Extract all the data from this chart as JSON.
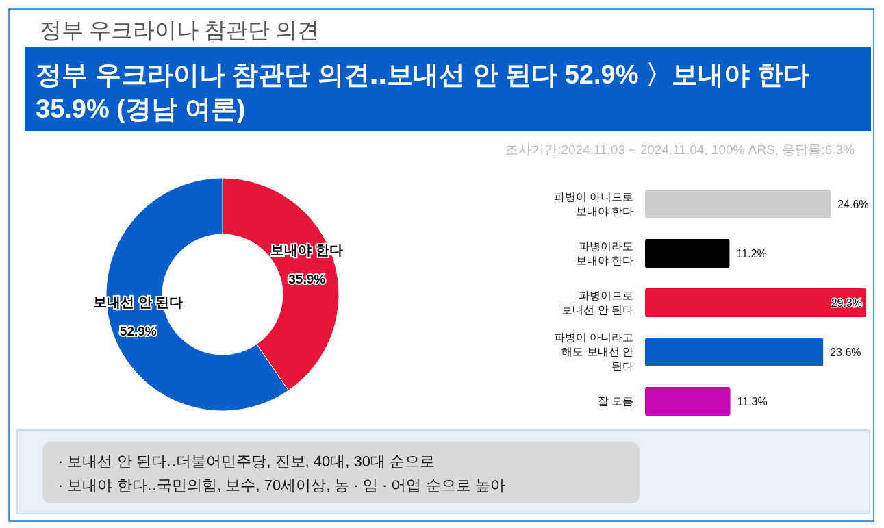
{
  "chart_data": [
    {
      "type": "donut",
      "title": "정부 우크라이나 참관단 의견",
      "subtitle": "정부 우크라이나 참관단 의견‥보내선 안 된다 52.9% 〉보내야 한다 35.9% (경남 여론)",
      "categories": [
        "보내야 한다",
        "보내선 안 된다"
      ],
      "values": [
        35.9,
        52.9
      ],
      "value_labels": [
        "35.9%",
        "52.9%"
      ],
      "colors": [
        "#e8153a",
        "#0a5ec8"
      ],
      "annotations": [
        "조사기간:2024.11.03 ~ 2024.11.04, 100% ARS, 응답률:6.3%",
        "· 보내선 안 된다‥더불어민주당, 진보, 40대, 30대 순으로",
        "· 보내야 한다‥국민의힘, 보수, 70세이상, 농 · 임 · 어업 순으로 높아"
      ]
    },
    {
      "type": "bar",
      "orientation": "horizontal",
      "value_labels": [
        "24.6%",
        "11.2%",
        "29.3%",
        "23.6%",
        "11.3%"
      ],
      "categories": [
        "파병이 아니므로 보내야 한다",
        "파병이라도 보내야 한다",
        "파병이므로 보내선 안 된다",
        "파병이 아니라고 해도 보내선 안 된다",
        "잘 모름"
      ],
      "values": [
        24.6,
        11.2,
        29.3,
        23.6,
        11.3
      ],
      "colors": [
        "#cccccc",
        "#000000",
        "#e8153a",
        "#0a5ec8",
        "#c80ab4"
      ]
    }
  ]
}
